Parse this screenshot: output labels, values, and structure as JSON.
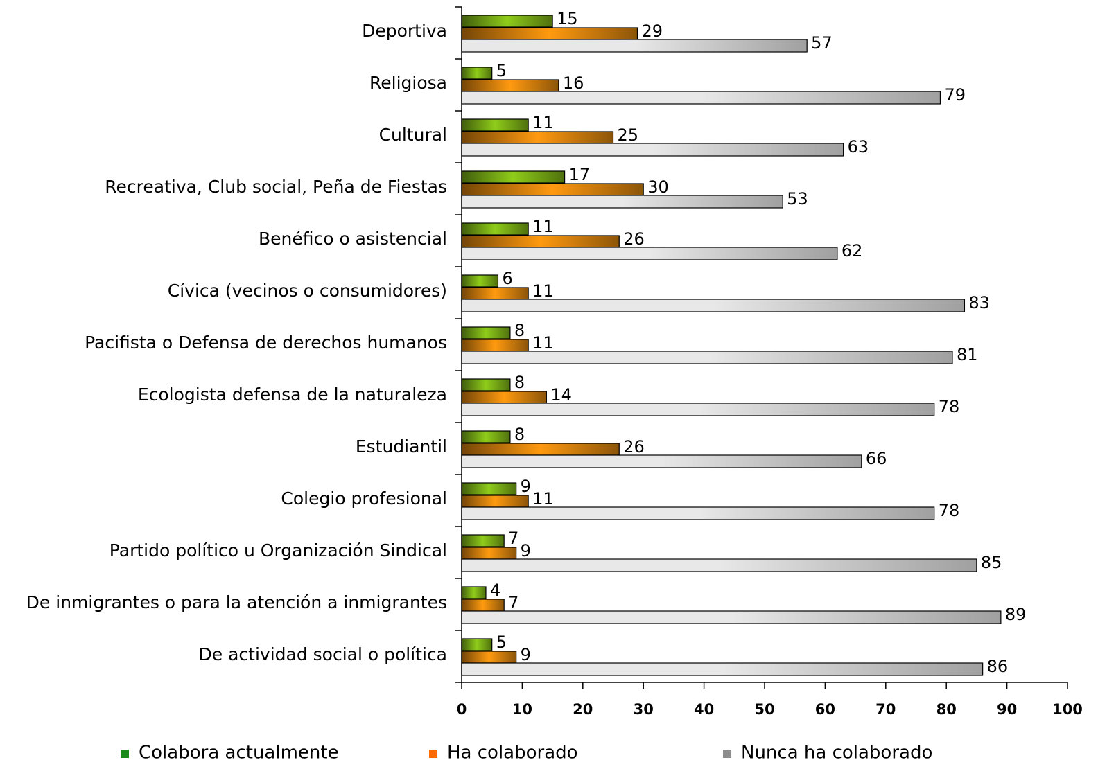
{
  "chart_data": {
    "type": "barh",
    "categories": [
      "Deportiva",
      "Religiosa",
      "Cultural",
      "Recreativa, Club social, Peña de Fiestas",
      "Benéfico o asistencial",
      "Cívica (vecinos o consumidores)",
      "Pacifista o Defensa de derechos humanos",
      "Ecologista defensa de la naturaleza",
      "Estudiantil",
      "Colegio profesional",
      "Partido político u Organización Sindical",
      "De inmigrantes o para la atención a inmigrantes",
      "De actividad social o política"
    ],
    "series": [
      {
        "name": "Colabora actualmente",
        "color": "#8fcc1a",
        "values": [
          15,
          5,
          11,
          17,
          11,
          6,
          8,
          8,
          8,
          9,
          7,
          4,
          5
        ]
      },
      {
        "name": "Ha colaborado",
        "color": "#ff9a10",
        "values": [
          29,
          16,
          25,
          30,
          26,
          11,
          11,
          14,
          26,
          11,
          9,
          7,
          9
        ]
      },
      {
        "name": "Nunca ha colaborado",
        "color": "#a0a0a0",
        "values": [
          57,
          79,
          63,
          53,
          62,
          83,
          81,
          78,
          66,
          78,
          85,
          89,
          86
        ]
      }
    ],
    "xlim": [
      0,
      100
    ],
    "xticks": [
      0,
      10,
      20,
      30,
      40,
      50,
      60,
      70,
      80,
      90,
      100
    ]
  }
}
